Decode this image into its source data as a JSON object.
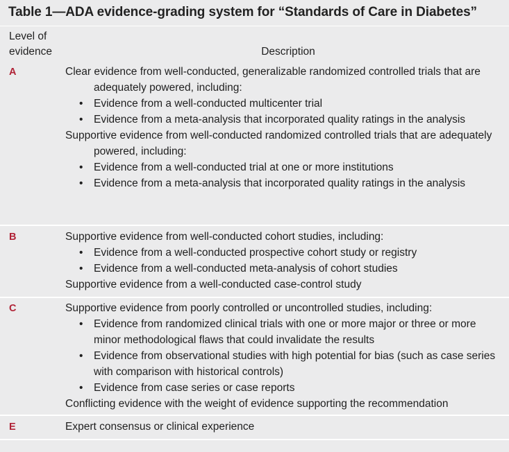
{
  "title": "Table 1—ADA evidence-grading system for “Standards of Care in Diabetes”",
  "headers": {
    "level_line1": "Level of",
    "level_line2": "evidence",
    "description": "Description"
  },
  "rows": [
    {
      "level": "A",
      "items": [
        {
          "type": "para",
          "text": "Clear evidence from well-conducted, generalizable randomized controlled trials that are adequately powered, including:"
        },
        {
          "type": "bullet",
          "text": "Evidence from a well-conducted multicenter trial"
        },
        {
          "type": "bullet",
          "text": "Evidence from a meta-analysis that incorporated quality ratings in the analysis"
        },
        {
          "type": "para",
          "text": "Supportive evidence from well-conducted randomized controlled trials that are adequately powered, including:"
        },
        {
          "type": "bullet",
          "text": "Evidence from a well-conducted trial at one or more institutions"
        },
        {
          "type": "bullet",
          "text": "Evidence from a meta-analysis that incorporated quality ratings in the analysis"
        }
      ]
    },
    {
      "level": "B",
      "items": [
        {
          "type": "para",
          "text": "Supportive evidence from well-conducted cohort studies, including:"
        },
        {
          "type": "bullet",
          "text": "Evidence from a well-conducted prospective cohort study or registry"
        },
        {
          "type": "bullet",
          "text": "Evidence from a well-conducted meta-analysis of cohort studies"
        },
        {
          "type": "para",
          "text": "Supportive evidence from a well-conducted case-control study"
        }
      ]
    },
    {
      "level": "C",
      "items": [
        {
          "type": "para",
          "text": "Supportive evidence from poorly controlled or uncontrolled studies, including:"
        },
        {
          "type": "bullet",
          "text": "Evidence from randomized clinical trials with one or more major or three or more minor methodological flaws that could invalidate the results"
        },
        {
          "type": "bullet",
          "text": "Evidence from observational studies with high potential for bias (such as case series with comparison with historical controls)"
        },
        {
          "type": "bullet",
          "text": "Evidence from case series or case reports"
        },
        {
          "type": "para",
          "text": "Conflicting evidence with the weight of evidence supporting the recommendation"
        }
      ]
    },
    {
      "level": "E",
      "items": [
        {
          "type": "para",
          "text": "Expert consensus or clinical experience"
        }
      ]
    }
  ],
  "bullet_glyph": "•"
}
